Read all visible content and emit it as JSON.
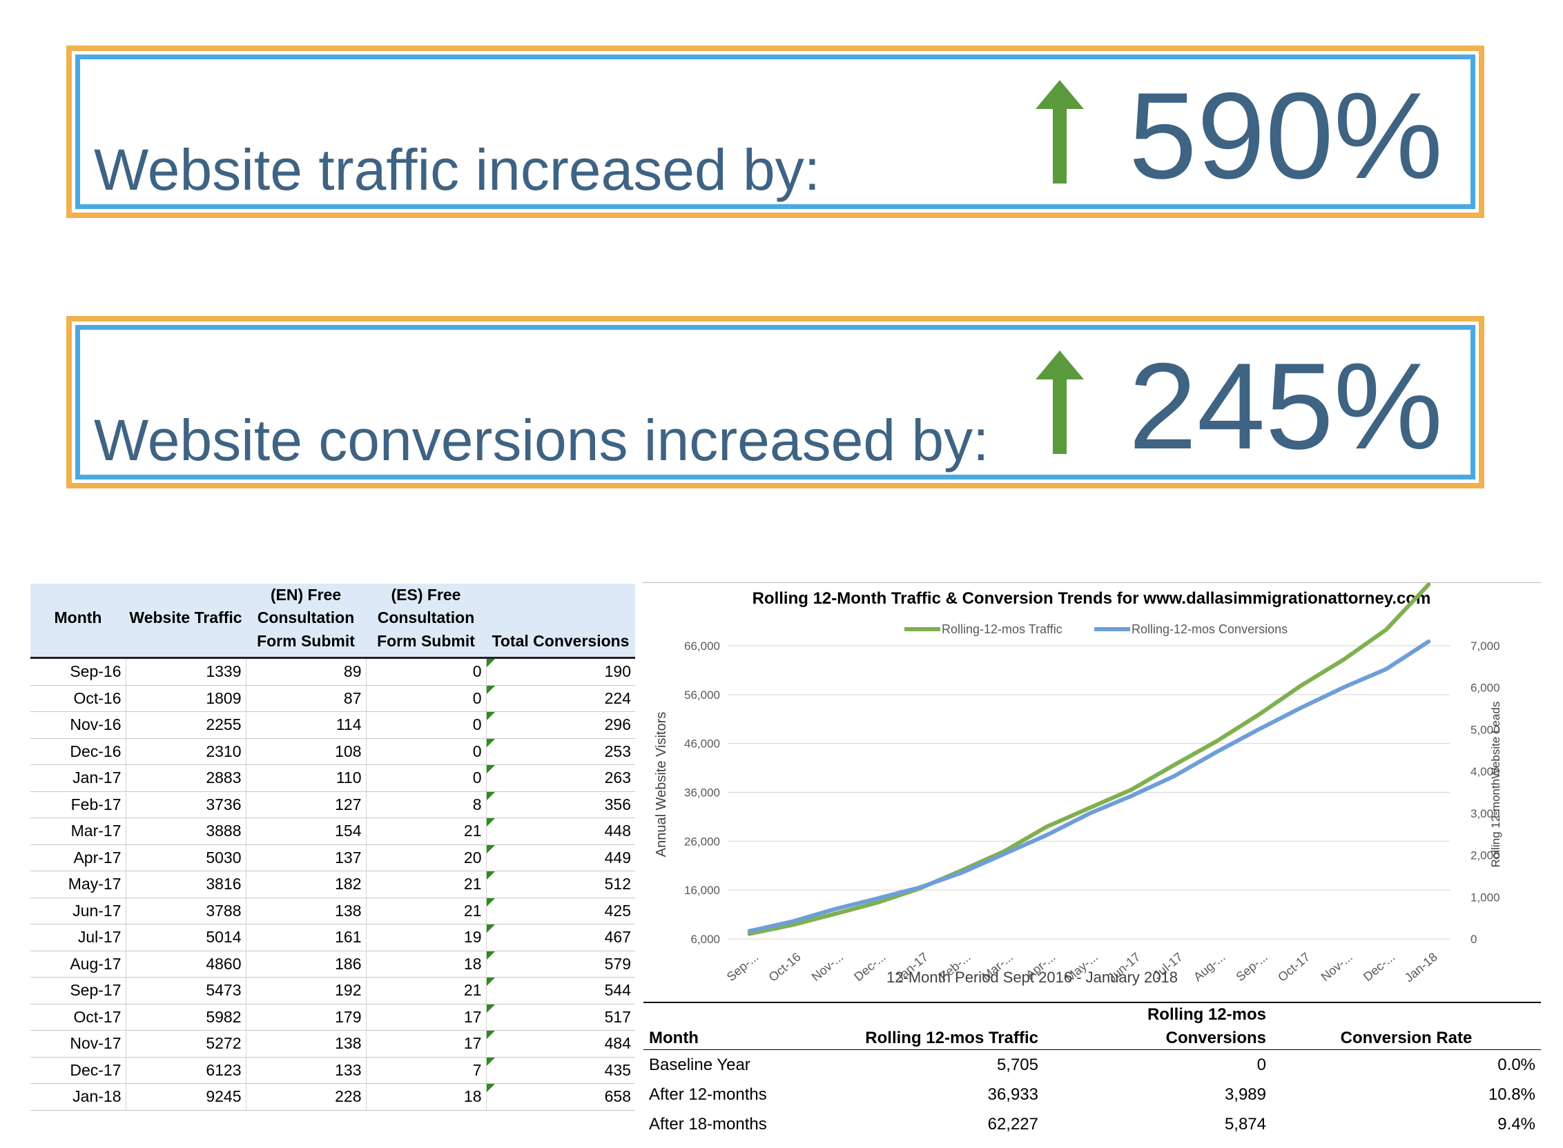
{
  "banners": [
    {
      "label": "Website traffic increased by:",
      "value": "590%"
    },
    {
      "label": "Website conversions increased by:",
      "value": "245%"
    }
  ],
  "colors": {
    "banner_outer": "#f0b14e",
    "banner_inner": "#4aa9e2",
    "banner_text": "#3e6383",
    "arrow": "#5b9a3c",
    "traffic_line": "#7fb04f",
    "conversions_line": "#6e9ed8",
    "table_header_bg": "#dde9f6"
  },
  "monthly_table": {
    "headers": [
      "Month",
      "Website Traffic",
      "(EN) Free Consultation Form Submit",
      "(ES) Free Consultation Form Submit",
      "Total Conversions"
    ],
    "rows": [
      [
        "Sep-16",
        "1339",
        "89",
        "0",
        "190"
      ],
      [
        "Oct-16",
        "1809",
        "87",
        "0",
        "224"
      ],
      [
        "Nov-16",
        "2255",
        "114",
        "0",
        "296"
      ],
      [
        "Dec-16",
        "2310",
        "108",
        "0",
        "253"
      ],
      [
        "Jan-17",
        "2883",
        "110",
        "0",
        "263"
      ],
      [
        "Feb-17",
        "3736",
        "127",
        "8",
        "356"
      ],
      [
        "Mar-17",
        "3888",
        "154",
        "21",
        "448"
      ],
      [
        "Apr-17",
        "5030",
        "137",
        "20",
        "449"
      ],
      [
        "May-17",
        "3816",
        "182",
        "21",
        "512"
      ],
      [
        "Jun-17",
        "3788",
        "138",
        "21",
        "425"
      ],
      [
        "Jul-17",
        "5014",
        "161",
        "19",
        "467"
      ],
      [
        "Aug-17",
        "4860",
        "186",
        "18",
        "579"
      ],
      [
        "Sep-17",
        "5473",
        "192",
        "21",
        "544"
      ],
      [
        "Oct-17",
        "5982",
        "179",
        "17",
        "517"
      ],
      [
        "Nov-17",
        "5272",
        "138",
        "17",
        "484"
      ],
      [
        "Dec-17",
        "6123",
        "133",
        "7",
        "435"
      ],
      [
        "Jan-18",
        "9245",
        "228",
        "18",
        "658"
      ]
    ]
  },
  "chart_data": {
    "type": "line",
    "title": "Rolling 12-Month Traffic & Conversion Trends for www.dallasimmigrationattorney.com",
    "xlabel": "12-Month Period Sept 2016 - January 2018",
    "ylabel": "Annual Website Visitors",
    "y2label": "Rolling 12-monthWebsite Leads",
    "categories": [
      "Sep-...",
      "Oct-16",
      "Nov-...",
      "Dec-...",
      "Jan-17",
      "Feb-...",
      "Mar-...",
      "Apr-...",
      "May-...",
      "Jun-17",
      "Jul-17",
      "Aug-...",
      "Sep-...",
      "Oct-17",
      "Nov-...",
      "Dec-...",
      "Jan-18"
    ],
    "ylim": [
      6000,
      66000
    ],
    "yticks": [
      "66,000",
      "56,000",
      "46,000",
      "36,000",
      "26,000",
      "16,000",
      "6,000"
    ],
    "y2lim": [
      0,
      7000
    ],
    "y2ticks": [
      "7,000",
      "6,000",
      "5,000",
      "4,000",
      "3,000",
      "2,000",
      "1,000",
      "0"
    ],
    "grid": true,
    "legend": "top",
    "series": [
      {
        "name": "Rolling-12-mos Traffic",
        "axis": "left",
        "values": [
          7044,
          8853,
          11108,
          13418,
          16301,
          20037,
          23925,
          28955,
          32771,
          36559,
          41573,
          46433,
          51906,
          57888,
          63160,
          69283,
          78528
        ]
      },
      {
        "name": "Rolling-12-mos Conversions",
        "axis": "right",
        "values": [
          190,
          414,
          710,
          963,
          1226,
          1582,
          2030,
          2479,
          2991,
          3416,
          3883,
          4462,
          5006,
          5523,
          6007,
          6442,
          7100
        ]
      }
    ]
  },
  "summary_table": {
    "headers": [
      "Month",
      "Rolling 12-mos Traffic",
      "Rolling 12-mos Conversions",
      "Conversion Rate"
    ],
    "rows": [
      [
        "Baseline Year",
        "5,705",
        "0",
        "0.0%"
      ],
      [
        "After 12-months",
        "36,933",
        "3,989",
        "10.8%"
      ],
      [
        "After 18-months",
        "62,227",
        "5,874",
        "9.4%"
      ]
    ]
  }
}
